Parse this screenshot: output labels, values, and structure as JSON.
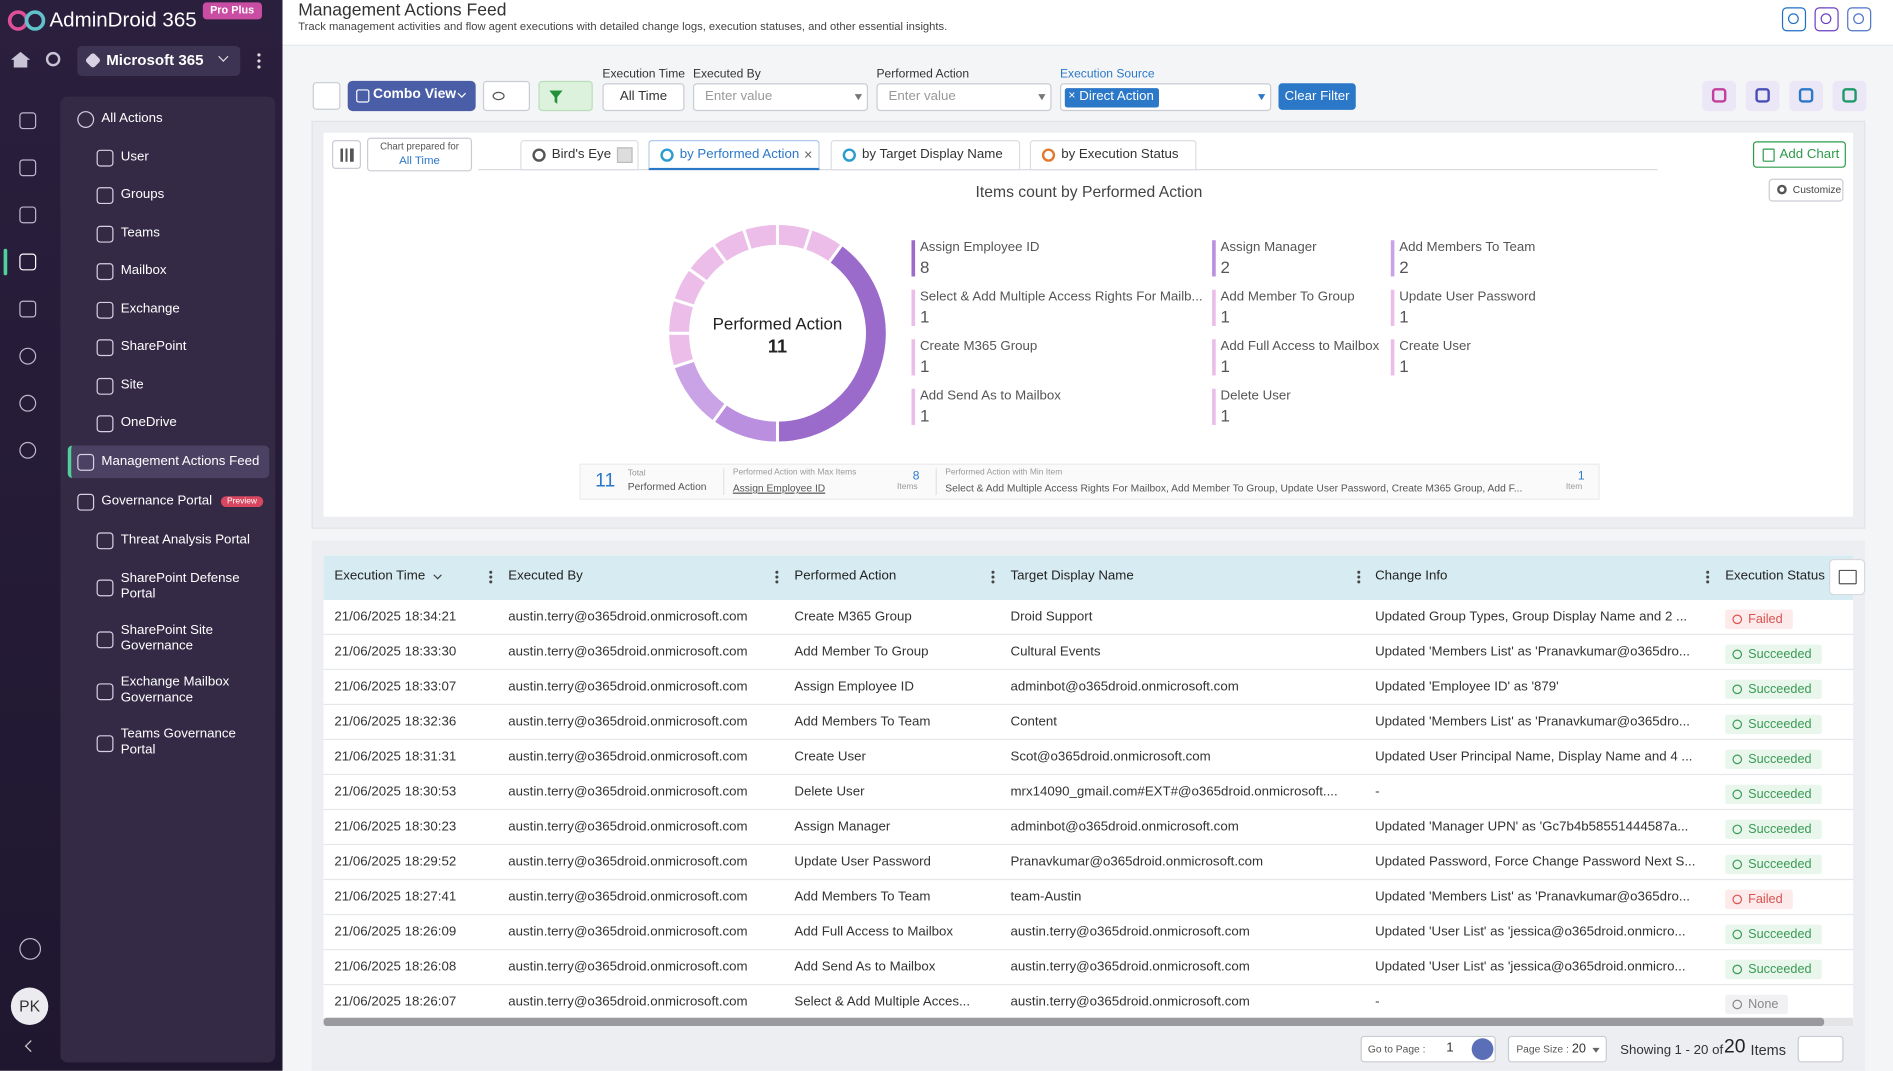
{
  "brand": {
    "name": "AdminDroid 365",
    "badge": "Pro Plus"
  },
  "sidebar": {
    "tenant": "Microsoft 365",
    "menu": [
      {
        "label": "All Actions",
        "children": [
          "User",
          "Groups",
          "Teams",
          "Mailbox",
          "Exchange",
          "SharePoint",
          "Site",
          "OneDrive"
        ]
      },
      {
        "label": "Management Actions Feed"
      },
      {
        "label": "Governance Portal",
        "badge": "Preview",
        "children": [
          "Threat Analysis Portal",
          "SharePoint Defense Portal",
          "SharePoint Site Governance",
          "Exchange Mailbox Governance",
          "Teams Governance Portal"
        ]
      }
    ],
    "avatar": "PK"
  },
  "header": {
    "title": "Management Actions Feed",
    "subtitle": "Track management activities and flow agent executions with detailed change logs, execution statuses, and other essential insights."
  },
  "toolbar": {
    "view": "Combo View",
    "filters": [
      {
        "label": "Execution Time",
        "value": "All Time"
      },
      {
        "label": "Executed By",
        "placeholder": "Enter value"
      },
      {
        "label": "Performed Action",
        "placeholder": "Enter value"
      },
      {
        "label": "Execution Source",
        "value": "Direct Action"
      }
    ],
    "clear": "Clear Filter"
  },
  "chart_panel": {
    "prepared_for_label": "Chart prepared for",
    "prepared_for": "All Time",
    "tabs": [
      "Bird's Eye",
      "by Performed Action",
      "by Target Display Name",
      "by Execution Status"
    ],
    "add_chart": "Add Chart",
    "customize": "Customize",
    "title": "Items count by Performed Action",
    "center_label": "Performed Action",
    "center_value": 11,
    "items": [
      {
        "label": "Assign Employee ID",
        "value": 8,
        "color": "#9b6bcb"
      },
      {
        "label": "Assign Manager",
        "value": 2,
        "color": "#bb8fe0"
      },
      {
        "label": "Add Members To Team",
        "value": 2,
        "color": "#c9a3e6"
      },
      {
        "label": "Select & Add Multiple Access Rights For Mailb...",
        "value": 1,
        "color": "#ebbde8"
      },
      {
        "label": "Add Member To Group",
        "value": 1,
        "color": "#ebbde8"
      },
      {
        "label": "Update User Password",
        "value": 1,
        "color": "#ebbde8"
      },
      {
        "label": "Create M365 Group",
        "value": 1,
        "color": "#ebbde8"
      },
      {
        "label": "Add Full Access to Mailbox",
        "value": 1,
        "color": "#ebbde8"
      },
      {
        "label": "Create User",
        "value": 1,
        "color": "#ebbde8"
      },
      {
        "label": "Add Send As to Mailbox",
        "value": 1,
        "color": "#ebbde8"
      },
      {
        "label": "Delete User",
        "value": 1,
        "color": "#ebbde8"
      }
    ],
    "summary": {
      "total": 11,
      "total_label": "Total",
      "total_name": "Performed Action",
      "max_label": "Performed Action with Max Items",
      "max_name": "Assign Employee ID",
      "max_value": 8,
      "max_unit": "Items",
      "min_label": "Performed Action with Min Item",
      "min_names": "Select & Add Multiple Access Rights For Mailbox, Add Member To Group, Update User Password, Create M365 Group, Add F...",
      "min_value": 1,
      "min_unit": "Item"
    }
  },
  "table": {
    "columns": [
      "Execution Time",
      "Executed By",
      "Performed Action",
      "Target Display Name",
      "Change Info",
      "Execution Status"
    ],
    "rows": [
      [
        "21/06/2025 18:34:21",
        "austin.terry@o365droid.onmicrosoft.com",
        "Create M365 Group",
        "Droid Support",
        "Updated Group Types, Group Display Name and 2 ...",
        "Failed"
      ],
      [
        "21/06/2025 18:33:30",
        "austin.terry@o365droid.onmicrosoft.com",
        "Add Member To Group",
        "Cultural Events",
        "Updated 'Members List' as 'Pranavkumar@o365dro...",
        "Succeeded"
      ],
      [
        "21/06/2025 18:33:07",
        "austin.terry@o365droid.onmicrosoft.com",
        "Assign Employee ID",
        "adminbot@o365droid.onmicrosoft.com",
        "Updated 'Employee ID' as '879'",
        "Succeeded"
      ],
      [
        "21/06/2025 18:32:36",
        "austin.terry@o365droid.onmicrosoft.com",
        "Add Members To Team",
        "Content",
        "Updated 'Members List' as 'Pranavkumar@o365dro...",
        "Succeeded"
      ],
      [
        "21/06/2025 18:31:31",
        "austin.terry@o365droid.onmicrosoft.com",
        "Create User",
        "Scot@o365droid.onmicrosoft.com",
        "Updated User Principal Name, Display Name and 4 ...",
        "Succeeded"
      ],
      [
        "21/06/2025 18:30:53",
        "austin.terry@o365droid.onmicrosoft.com",
        "Delete User",
        "mrx14090_gmail.com#EXT#@o365droid.onmicrosoft....",
        "-",
        "Succeeded"
      ],
      [
        "21/06/2025 18:30:23",
        "austin.terry@o365droid.onmicrosoft.com",
        "Assign Manager",
        "adminbot@o365droid.onmicrosoft.com",
        "Updated 'Manager UPN' as 'Gc7b4b58551444587a...",
        "Succeeded"
      ],
      [
        "21/06/2025 18:29:52",
        "austin.terry@o365droid.onmicrosoft.com",
        "Update User Password",
        "Pranavkumar@o365droid.onmicrosoft.com",
        "Updated Password, Force Change Password Next S...",
        "Succeeded"
      ],
      [
        "21/06/2025 18:27:41",
        "austin.terry@o365droid.onmicrosoft.com",
        "Add Members To Team",
        "team-Austin",
        "Updated 'Members List' as 'Pranavkumar@o365dro...",
        "Failed"
      ],
      [
        "21/06/2025 18:26:09",
        "austin.terry@o365droid.onmicrosoft.com",
        "Add Full Access to Mailbox",
        "austin.terry@o365droid.onmicrosoft.com",
        "Updated 'User List' as 'jessica@o365droid.onmicro...",
        "Succeeded"
      ],
      [
        "21/06/2025 18:26:08",
        "austin.terry@o365droid.onmicrosoft.com",
        "Add Send As to Mailbox",
        "austin.terry@o365droid.onmicrosoft.com",
        "Updated 'User List' as 'jessica@o365droid.onmicro...",
        "Succeeded"
      ],
      [
        "21/06/2025 18:26:07",
        "austin.terry@o365droid.onmicrosoft.com",
        "Select & Add Multiple Acces...",
        "austin.terry@o365droid.onmicrosoft.com",
        "-",
        "None"
      ]
    ]
  },
  "pagination": {
    "goto_label": "Go to Page :",
    "page": 1,
    "size_label": "Page Size :",
    "size": 20,
    "showing": "Showing",
    "range": "1 - 20 of",
    "total": 20,
    "unit": "Items"
  }
}
